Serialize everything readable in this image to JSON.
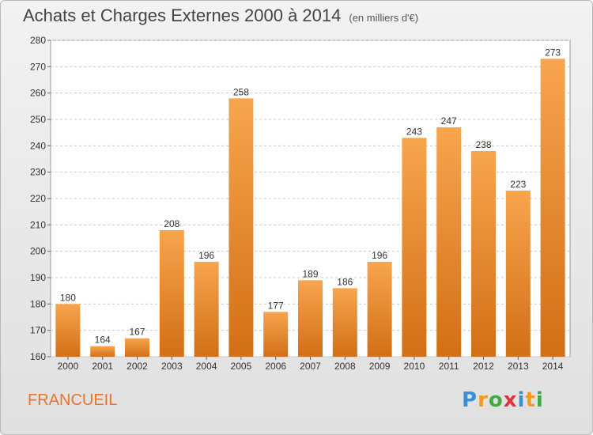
{
  "header": {
    "title": "Achats et Charges Externes 2000 à 2014",
    "subtitle": "(en milliers d'€)"
  },
  "footer": {
    "location": "FRANCUEIL",
    "logo": [
      "P",
      "r",
      "o",
      "x",
      "i",
      "t",
      "i"
    ],
    "logo_colors": [
      "#3b8fd4",
      "#f29a1e",
      "#3faa3f",
      "#e0333c",
      "#3b8fd4",
      "#f29a1e",
      "#3faa3f"
    ]
  },
  "colors": {
    "bar_light": "#f7a54e",
    "bar_dark": "#d26f16",
    "grid": "#c8c8c8",
    "axis_text": "#333333"
  },
  "chart_data": {
    "type": "bar",
    "categories": [
      "2000",
      "2001",
      "2002",
      "2003",
      "2004",
      "2005",
      "2006",
      "2007",
      "2008",
      "2009",
      "2010",
      "2011",
      "2012",
      "2013",
      "2014"
    ],
    "values": [
      180,
      164,
      167,
      208,
      196,
      258,
      177,
      189,
      186,
      196,
      243,
      247,
      238,
      223,
      273
    ],
    "title": "Achats et Charges Externes 2000 à 2014",
    "ylim": [
      160,
      280
    ],
    "yticks": [
      160,
      170,
      180,
      190,
      200,
      210,
      220,
      230,
      240,
      250,
      260,
      270,
      280
    ],
    "grid": true
  }
}
